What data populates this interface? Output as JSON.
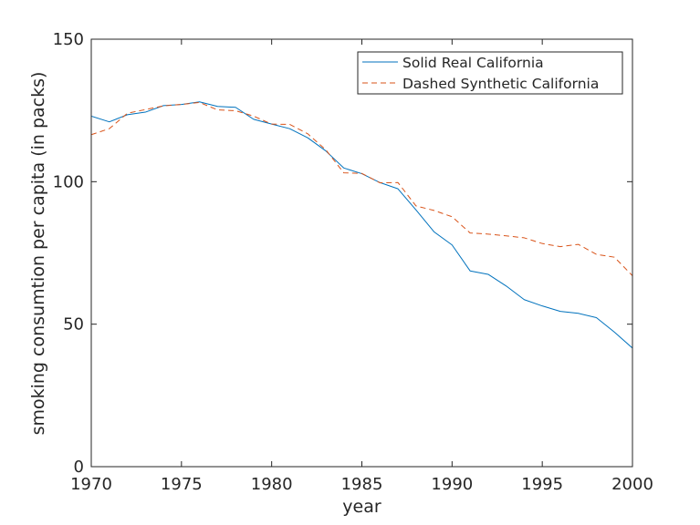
{
  "chart_data": {
    "type": "line",
    "title": "",
    "xlabel": "year",
    "ylabel": "smoking consumtion per capita (in packs)",
    "xlim": [
      1970,
      2000
    ],
    "ylim": [
      0,
      150
    ],
    "x_ticks": [
      1970,
      1975,
      1980,
      1985,
      1990,
      1995,
      2000
    ],
    "y_ticks": [
      0,
      50,
      100,
      150
    ],
    "x_tick_labels": [
      "1970",
      "1975",
      "1980",
      "1985",
      "1990",
      "1995",
      "2000"
    ],
    "y_tick_labels": [
      "0",
      "50",
      "100",
      "150"
    ],
    "grid": false,
    "legend_position": "top-right",
    "x": [
      1970,
      1971,
      1972,
      1973,
      1974,
      1975,
      1976,
      1977,
      1978,
      1979,
      1980,
      1981,
      1982,
      1983,
      1984,
      1985,
      1986,
      1987,
      1988,
      1989,
      1990,
      1991,
      1992,
      1993,
      1994,
      1995,
      1996,
      1997,
      1998,
      1999,
      2000
    ],
    "series": [
      {
        "name": "Solid Real California",
        "color": "#0072BD",
        "dash": "solid",
        "values": [
          123.0,
          121.0,
          123.5,
          124.4,
          126.7,
          127.1,
          128.0,
          126.4,
          126.1,
          121.9,
          120.2,
          118.6,
          115.4,
          110.8,
          104.8,
          102.8,
          99.7,
          97.5,
          90.1,
          82.4,
          77.8,
          68.7,
          67.5,
          63.4,
          58.6,
          56.4,
          54.5,
          53.8,
          52.3,
          47.2,
          41.6
        ]
      },
      {
        "name": "Dashed Synthetic California",
        "color": "#D95319",
        "dash": "dashed",
        "values": [
          116.5,
          118.6,
          124.0,
          125.3,
          126.6,
          127.1,
          127.8,
          125.2,
          124.9,
          123.0,
          120.2,
          120.1,
          116.8,
          111.2,
          103.1,
          102.9,
          99.6,
          99.7,
          91.5,
          89.9,
          87.7,
          82.0,
          81.6,
          81.0,
          80.3,
          78.3,
          77.2,
          78.0,
          74.5,
          73.5,
          67.0
        ]
      }
    ]
  }
}
